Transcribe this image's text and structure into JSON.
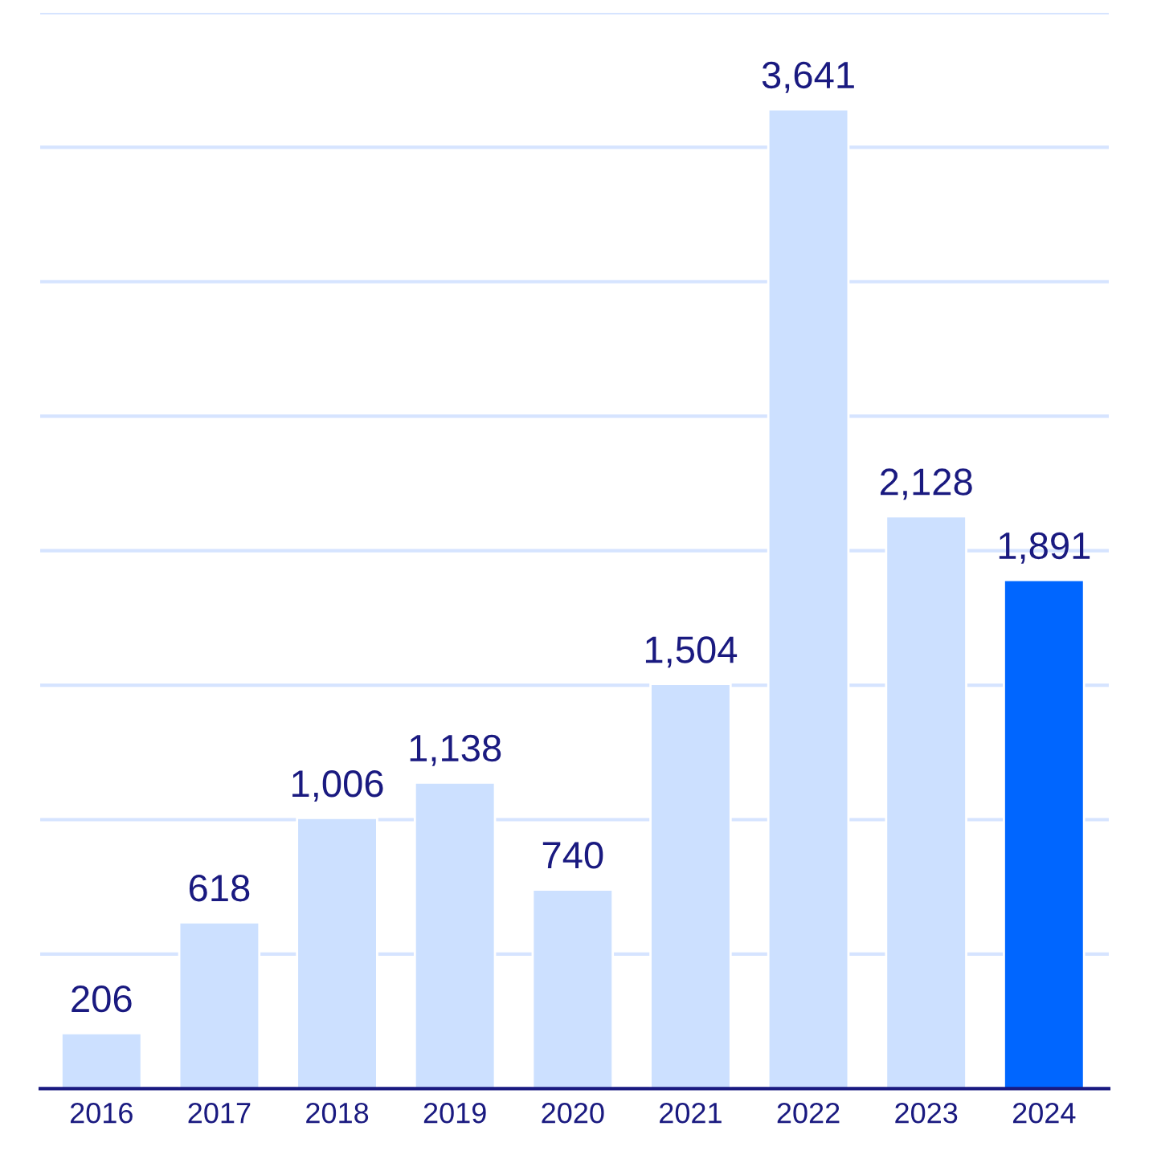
{
  "chart_data": {
    "type": "bar",
    "categories": [
      "2016",
      "2017",
      "2018",
      "2019",
      "2020",
      "2021",
      "2022",
      "2023",
      "2024"
    ],
    "values": [
      206,
      618,
      1006,
      1138,
      740,
      1504,
      3641,
      2128,
      1891
    ],
    "colors": [
      "#cce0ff",
      "#cce0ff",
      "#cce0ff",
      "#cce0ff",
      "#cce0ff",
      "#cce0ff",
      "#cce0ff",
      "#cce0ff",
      "#0066ff"
    ],
    "ylim": [
      0,
      4000
    ],
    "yticks": [
      {
        "value": 0,
        "label": null
      },
      {
        "value": 500,
        "label": null
      },
      {
        "value": 1000,
        "label": null
      },
      {
        "value": 1500,
        "label": null
      },
      {
        "value": 2000,
        "label": null
      },
      {
        "value": 2500,
        "label": null
      },
      {
        "value": 3000,
        "label": null
      },
      {
        "value": 3500,
        "label": null
      },
      {
        "value": 4000,
        "label": null
      }
    ],
    "value_labels": [
      "206",
      "618",
      "1,006",
      "1,138",
      "740",
      "1,504",
      "3,641",
      "2,128",
      "1,891"
    ],
    "grid": "y",
    "tick_labels": "x"
  }
}
